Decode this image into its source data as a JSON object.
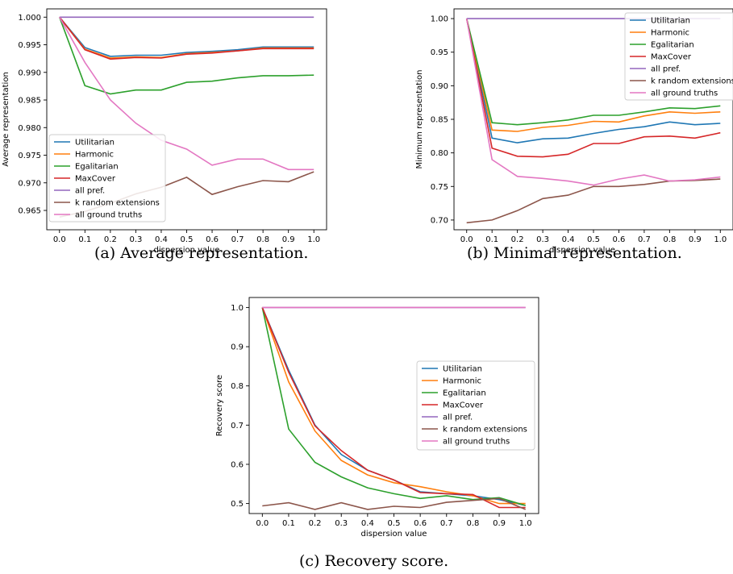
{
  "captions": {
    "a": "(a) Average representation.",
    "b": "(b) Minimal representation.",
    "c": "(c) Recovery score."
  },
  "series_colors": [
    "#1f77b4",
    "#ff7f0e",
    "#2ca02c",
    "#d62728",
    "#9467bd",
    "#8c564b",
    "#e377c2"
  ],
  "chart_data": [
    {
      "type": "line",
      "xlabel": "dispersion value",
      "ylabel": "Average representation",
      "x": [
        0.0,
        0.1,
        0.2,
        0.3,
        0.4,
        0.5,
        0.6,
        0.7,
        0.8,
        0.9,
        1.0
      ],
      "xticks": [
        "0.0",
        "0.1",
        "0.2",
        "0.3",
        "0.4",
        "0.5",
        "0.6",
        "0.7",
        "0.8",
        "0.9",
        "1.0"
      ],
      "yticks": [
        "0.965",
        "0.970",
        "0.975",
        "0.980",
        "0.985",
        "0.990",
        "0.995",
        "1.000"
      ],
      "ylim": [
        0.9615,
        1.0015
      ],
      "grid": false,
      "legend_position": "bottom-left",
      "series": [
        {
          "name": "Utilitarian",
          "values": [
            1.0,
            0.9945,
            0.9929,
            0.9931,
            0.9931,
            0.9936,
            0.9938,
            0.9941,
            0.9946,
            0.9946,
            0.9946
          ]
        },
        {
          "name": "Harmonic",
          "values": [
            1.0,
            0.9942,
            0.9926,
            0.9928,
            0.9927,
            0.9934,
            0.9936,
            0.9939,
            0.9944,
            0.9944,
            0.9944
          ]
        },
        {
          "name": "Egalitarian",
          "values": [
            1.0,
            0.9876,
            0.9861,
            0.9868,
            0.9868,
            0.9882,
            0.9884,
            0.989,
            0.9894,
            0.9894,
            0.9895
          ]
        },
        {
          "name": "MaxCover",
          "values": [
            1.0,
            0.9941,
            0.9924,
            0.9927,
            0.9926,
            0.9933,
            0.9935,
            0.9939,
            0.9943,
            0.9943,
            0.9943
          ]
        },
        {
          "name": "all pref.",
          "values": [
            1.0,
            1.0,
            1.0,
            1.0,
            1.0,
            1.0,
            1.0,
            1.0,
            1.0,
            1.0,
            1.0
          ]
        },
        {
          "name": "k random extensions",
          "values": [
            0.9638,
            0.9648,
            0.9663,
            0.968,
            0.9692,
            0.971,
            0.9679,
            0.9693,
            0.9704,
            0.9702,
            0.972
          ]
        },
        {
          "name": "all ground truths",
          "values": [
            1.0,
            0.9918,
            0.985,
            0.9808,
            0.9777,
            0.9761,
            0.9732,
            0.9743,
            0.9743,
            0.9724,
            0.9724
          ]
        }
      ]
    },
    {
      "type": "line",
      "xlabel": "dispersion value",
      "ylabel": "Minimum representation",
      "x": [
        0.0,
        0.1,
        0.2,
        0.3,
        0.4,
        0.5,
        0.6,
        0.7,
        0.8,
        0.9,
        1.0
      ],
      "xticks": [
        "0.0",
        "0.1",
        "0.2",
        "0.3",
        "0.4",
        "0.5",
        "0.6",
        "0.7",
        "0.8",
        "0.9",
        "1.0"
      ],
      "yticks": [
        "0.70",
        "0.75",
        "0.80",
        "0.85",
        "0.90",
        "0.95",
        "1.00"
      ],
      "ylim": [
        0.6855,
        1.0145
      ],
      "grid": false,
      "legend_position": "top-right",
      "series": [
        {
          "name": "Utilitarian",
          "values": [
            1.0,
            0.822,
            0.815,
            0.821,
            0.822,
            0.829,
            0.835,
            0.839,
            0.846,
            0.842,
            0.844
          ]
        },
        {
          "name": "Harmonic",
          "values": [
            1.0,
            0.834,
            0.832,
            0.838,
            0.841,
            0.847,
            0.846,
            0.855,
            0.861,
            0.859,
            0.861
          ]
        },
        {
          "name": "Egalitarian",
          "values": [
            1.0,
            0.845,
            0.842,
            0.845,
            0.849,
            0.856,
            0.856,
            0.861,
            0.867,
            0.866,
            0.87
          ]
        },
        {
          "name": "MaxCover",
          "values": [
            1.0,
            0.807,
            0.795,
            0.794,
            0.798,
            0.814,
            0.814,
            0.824,
            0.825,
            0.822,
            0.83
          ]
        },
        {
          "name": "all pref.",
          "values": [
            1.0,
            1.0,
            1.0,
            1.0,
            1.0,
            1.0,
            1.0,
            1.0,
            1.0,
            1.0,
            1.0
          ]
        },
        {
          "name": "k random extensions",
          "values": [
            0.696,
            0.7,
            0.714,
            0.732,
            0.737,
            0.75,
            0.75,
            0.753,
            0.758,
            0.759,
            0.761
          ]
        },
        {
          "name": "all ground truths",
          "values": [
            1.0,
            0.79,
            0.765,
            0.762,
            0.758,
            0.752,
            0.761,
            0.767,
            0.758,
            0.76,
            0.764
          ]
        }
      ]
    },
    {
      "type": "line",
      "xlabel": "dispersion value",
      "ylabel": "Recovery score",
      "x": [
        0.0,
        0.1,
        0.2,
        0.3,
        0.4,
        0.5,
        0.6,
        0.7,
        0.8,
        0.9,
        1.0
      ],
      "xticks": [
        "0.0",
        "0.1",
        "0.2",
        "0.3",
        "0.4",
        "0.5",
        "0.6",
        "0.7",
        "0.8",
        "0.9",
        "1.0"
      ],
      "yticks": [
        "0.5",
        "0.6",
        "0.7",
        "0.8",
        "0.9",
        "1.0"
      ],
      "ylim": [
        0.4745,
        1.0255
      ],
      "grid": false,
      "legend_position": "center-right",
      "series": [
        {
          "name": "Utilitarian",
          "values": [
            1.0,
            0.84,
            0.7,
            0.625,
            0.585,
            0.56,
            0.53,
            0.525,
            0.52,
            0.51,
            0.495
          ]
        },
        {
          "name": "Harmonic",
          "values": [
            1.0,
            0.81,
            0.685,
            0.61,
            0.573,
            0.553,
            0.543,
            0.53,
            0.52,
            0.5,
            0.5
          ]
        },
        {
          "name": "Egalitarian",
          "values": [
            1.0,
            0.69,
            0.605,
            0.568,
            0.54,
            0.525,
            0.513,
            0.52,
            0.51,
            0.515,
            0.495
          ]
        },
        {
          "name": "MaxCover",
          "values": [
            1.0,
            0.835,
            0.698,
            0.635,
            0.585,
            0.56,
            0.528,
            0.525,
            0.523,
            0.49,
            0.49
          ]
        },
        {
          "name": "all pref.",
          "values": [
            1.0,
            1.0,
            1.0,
            1.0,
            1.0,
            1.0,
            1.0,
            1.0,
            1.0,
            1.0,
            1.0
          ]
        },
        {
          "name": "k random extensions",
          "values": [
            0.494,
            0.502,
            0.485,
            0.502,
            0.485,
            0.493,
            0.49,
            0.503,
            0.508,
            0.513,
            0.485
          ]
        },
        {
          "name": "all ground truths",
          "values": [
            1.0,
            1.0,
            1.0,
            1.0,
            1.0,
            1.0,
            1.0,
            1.0,
            1.0,
            1.0,
            1.0
          ]
        }
      ]
    }
  ]
}
